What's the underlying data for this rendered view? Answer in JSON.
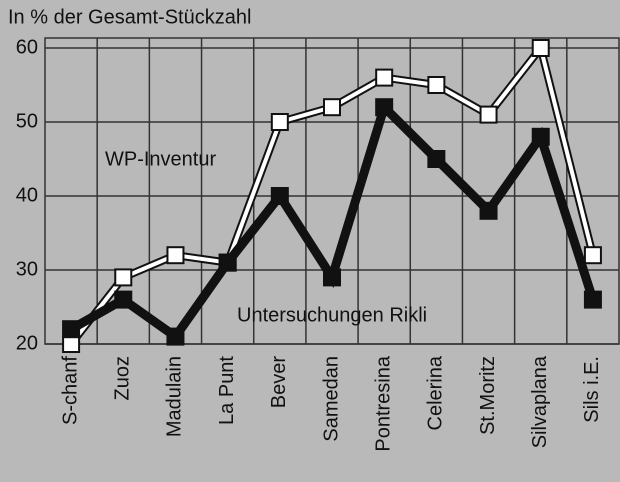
{
  "chart_data": {
    "type": "line",
    "title": "In % der Gesamt-Stückzahl",
    "categories": [
      "S-chanf",
      "Zuoz",
      "Madulain",
      "La Punt",
      "Bever",
      "Samedan",
      "Pontresina",
      "Celerina",
      "St.Moritz",
      "Silvaplana",
      "Sils i.E."
    ],
    "series": [
      {
        "name": "WP-Inventur",
        "color": "#ffffff",
        "values": [
          20,
          29,
          32,
          31,
          50,
          52,
          56,
          55,
          51,
          60,
          32
        ]
      },
      {
        "name": "Untersuchungen Rikli",
        "color": "#111111",
        "values": [
          22,
          26,
          21,
          31,
          40,
          29,
          52,
          45,
          38,
          48,
          26
        ]
      }
    ],
    "ylim": [
      20,
      60
    ],
    "yticks": [
      20,
      30,
      40,
      50,
      60
    ],
    "grid": true
  }
}
